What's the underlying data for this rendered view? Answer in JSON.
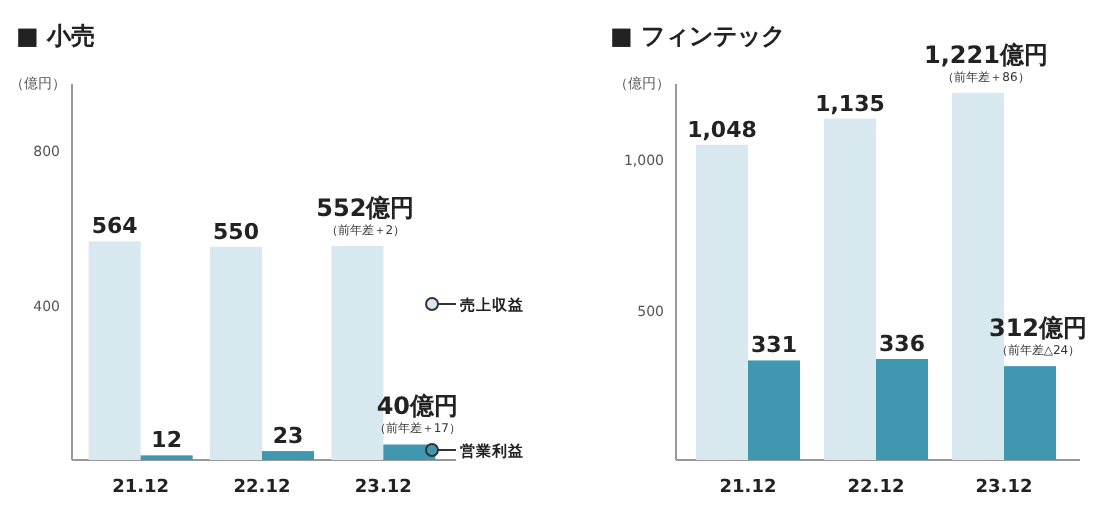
{
  "chart_data": [
    {
      "type": "bar",
      "title": "■ 小売",
      "ylabel": "（億円）",
      "categories": [
        "21.12",
        "22.12",
        "23.12"
      ],
      "ylim": [
        0,
        970
      ],
      "yticks": [
        400,
        800
      ],
      "legend": "right",
      "grid": false,
      "series": [
        {
          "name": "売上収益",
          "color": "#d7e8ef",
          "values": [
            564,
            550,
            552
          ],
          "value_labels": [
            "564",
            "550",
            "552億円"
          ]
        },
        {
          "name": "営業利益",
          "color": "#3f97b0",
          "values": [
            12,
            23,
            40
          ],
          "value_labels": [
            "12",
            "23",
            "40億円"
          ]
        }
      ],
      "annotations": [
        {
          "text": "（前年差＋2）",
          "x": "23.12",
          "y": 552
        },
        {
          "text": "（前年差＋17）",
          "x": "23.12",
          "y": 40
        }
      ]
    },
    {
      "type": "bar",
      "title": "■ フィンテック",
      "ylabel": "（億円）",
      "categories": [
        "21.12",
        "22.12",
        "23.12"
      ],
      "ylim": [
        0,
        1250
      ],
      "yticks": [
        500,
        {
          "value": 1000,
          "label": "1,000"
        }
      ],
      "grid": false,
      "series": [
        {
          "color": "#d7e8ef",
          "values": [
            1048,
            1135,
            1221
          ],
          "value_labels": [
            "1,048",
            "1,135",
            "1,221億円"
          ]
        },
        {
          "color": "#3f97b0",
          "values": [
            331,
            336,
            312
          ],
          "value_labels": [
            "331",
            "336",
            "312億円"
          ]
        }
      ],
      "annotations": [
        {
          "text": "（前年差＋86）",
          "x": "23.12",
          "y": 1221
        },
        {
          "text": "（前年差△24）",
          "x": "23.12",
          "y": 312
        }
      ]
    }
  ]
}
